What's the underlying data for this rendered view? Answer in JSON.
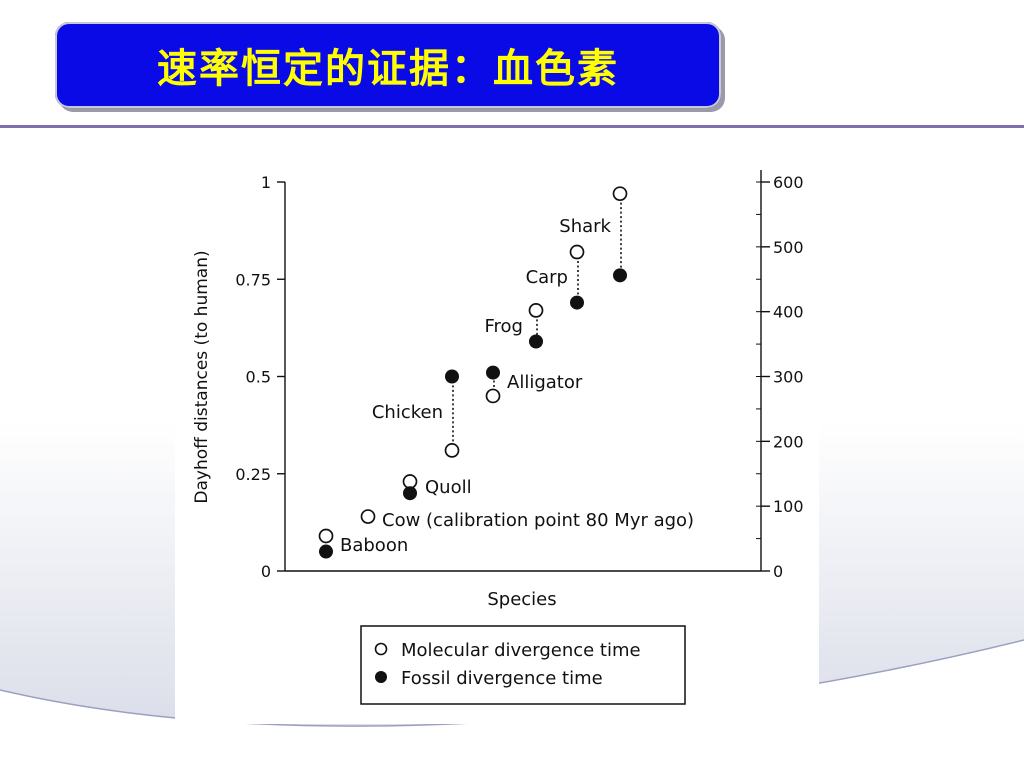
{
  "slide": {
    "title": "速率恒定的证据：血色素",
    "title_color": "#ffff00",
    "title_box_color": "#0a0ae6",
    "rule_color": "#7f6fae"
  },
  "chart_data": {
    "type": "scatter",
    "title": "",
    "xlabel": "Species",
    "ylabel": "Dayhoff distances (to human)",
    "ylim": [
      0,
      1
    ],
    "yticks": [
      "0",
      "0.25",
      "0.5",
      "0.75",
      "1"
    ],
    "y2lim": [
      0,
      600
    ],
    "y2ticks": [
      "0",
      "100",
      "200",
      "300",
      "400",
      "500",
      "600"
    ],
    "grid": false,
    "categories": [
      "Baboon",
      "Cow (calibration point 80 Myr ago)",
      "Quoll",
      "Chicken",
      "Alligator",
      "Frog",
      "Carp",
      "Shark"
    ],
    "series": [
      {
        "name": "Molecular divergence time",
        "marker": "open-circle",
        "values": [
          0.09,
          0.14,
          0.23,
          0.31,
          0.45,
          0.67,
          0.82,
          0.97
        ]
      },
      {
        "name": "Fossil divergence time",
        "marker": "filled-circle",
        "values": [
          0.05,
          null,
          0.2,
          0.5,
          0.51,
          0.59,
          0.69,
          0.76
        ]
      }
    ],
    "legend_position": "bottom"
  }
}
